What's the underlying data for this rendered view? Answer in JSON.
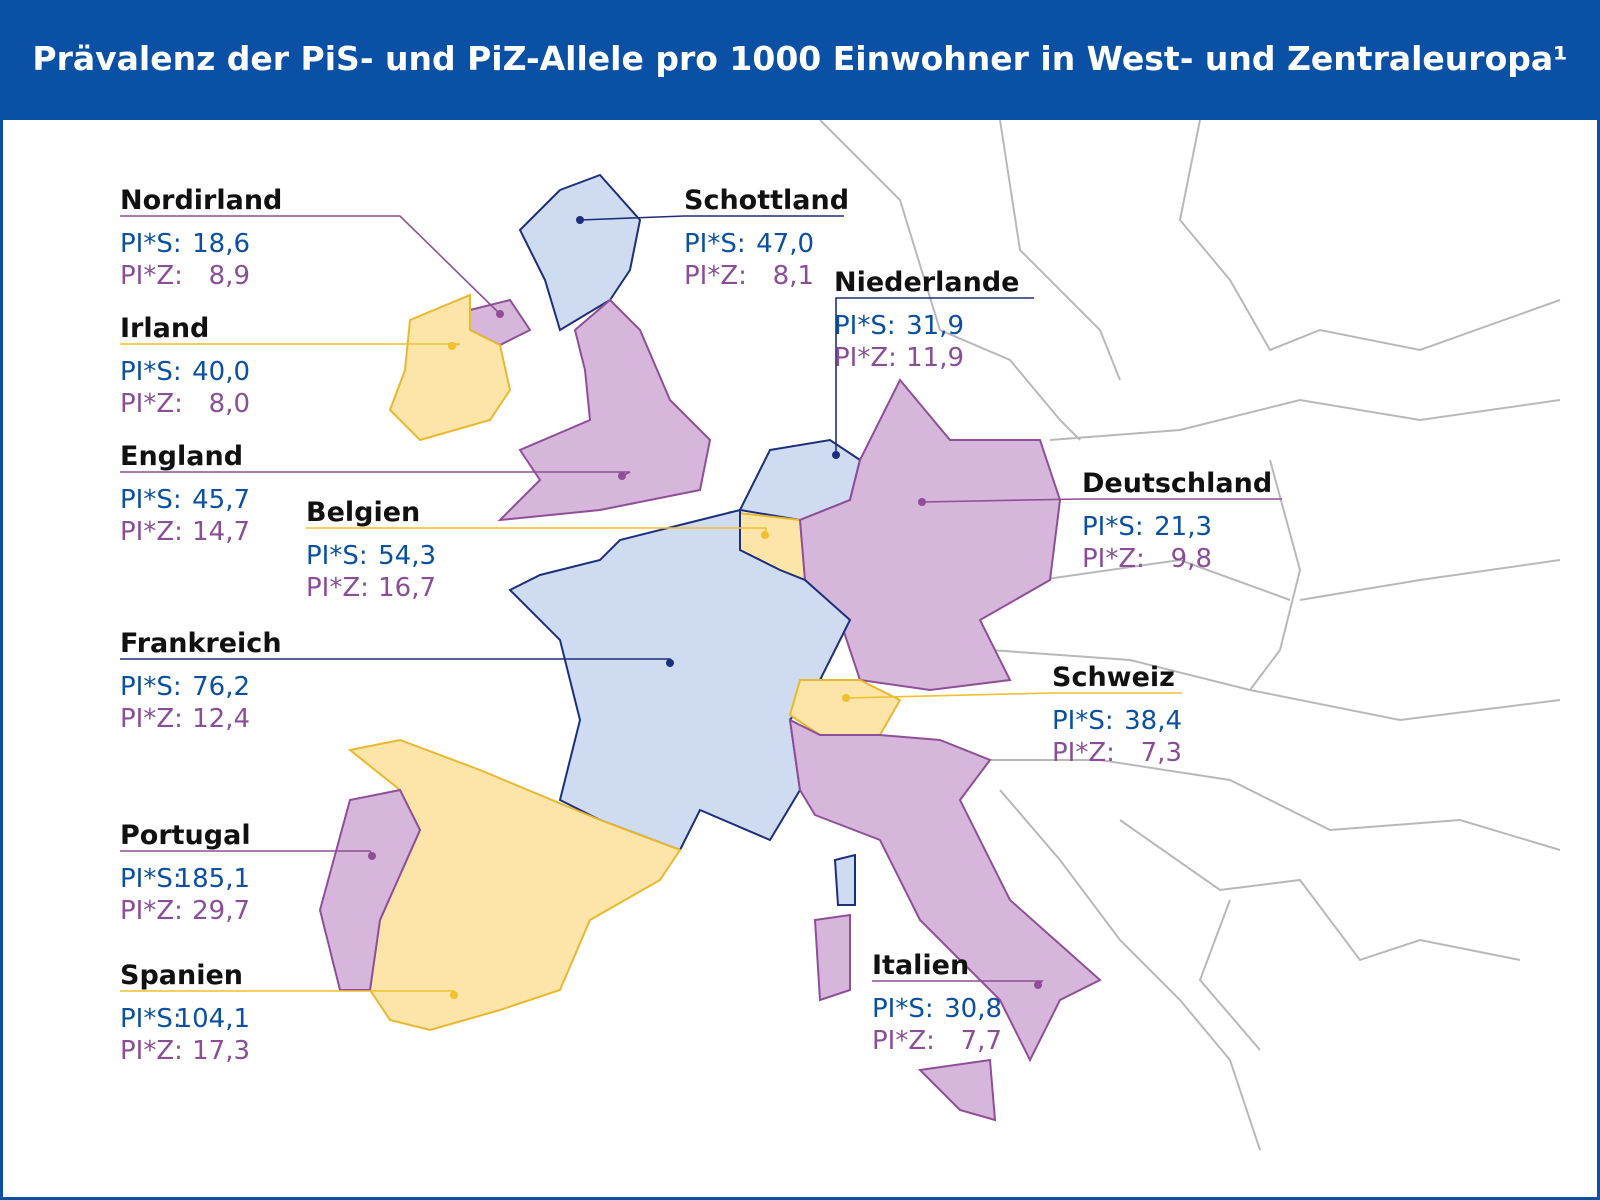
{
  "title": "Prävalenz der PiS- und PiZ-Allele pro 1000 Einwohner in West- und Zentraleuropa¹",
  "labels": {
    "s": "PI*S:",
    "z": "PI*Z:"
  },
  "regions": [
    {
      "name": "Nordirland",
      "s": "18,6",
      "z": "8,9"
    },
    {
      "name": "Schottland",
      "s": "47,0",
      "z": "8,1"
    },
    {
      "name": "Irland",
      "s": "40,0",
      "z": "8,0"
    },
    {
      "name": "Niederlande",
      "s": "31,9",
      "z": "11,9"
    },
    {
      "name": "England",
      "s": "45,7",
      "z": "14,7"
    },
    {
      "name": "Belgien",
      "s": "54,3",
      "z": "16,7"
    },
    {
      "name": "Deutschland",
      "s": "21,3",
      "z": "9,8"
    },
    {
      "name": "Frankreich",
      "s": "76,2",
      "z": "12,4"
    },
    {
      "name": "Schweiz",
      "s": "38,4",
      "z": "7,3"
    },
    {
      "name": "Portugal",
      "s": "185,1",
      "z": "29,7"
    },
    {
      "name": "Spanien",
      "s": "104,1",
      "z": "17,3"
    },
    {
      "name": "Italien",
      "s": "30,8",
      "z": "7,7"
    }
  ]
}
